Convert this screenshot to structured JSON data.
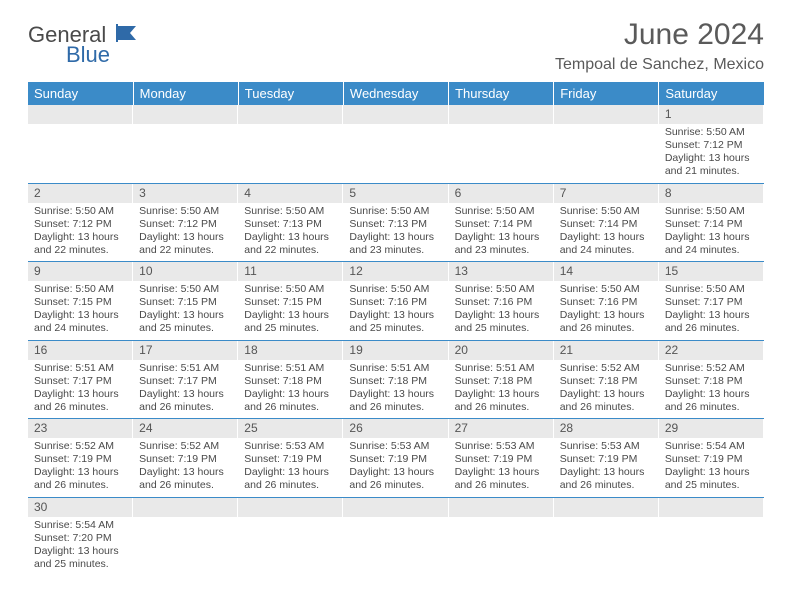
{
  "logo": {
    "general": "General",
    "blue": "Blue"
  },
  "title": "June 2024",
  "location": "Tempoal de Sanchez, Mexico",
  "weekdays": [
    "Sunday",
    "Monday",
    "Tuesday",
    "Wednesday",
    "Thursday",
    "Friday",
    "Saturday"
  ],
  "colors": {
    "header_bg": "#3b8bc8",
    "header_text": "#ffffff",
    "daynum_bg": "#e9e9e9",
    "rule": "#3b8bc8",
    "text": "#4a4a4a",
    "logo_blue": "#2f6aa8"
  },
  "weeks": [
    [
      null,
      null,
      null,
      null,
      null,
      null,
      {
        "n": "1",
        "sr": "Sunrise: 5:50 AM",
        "ss": "Sunset: 7:12 PM",
        "dl": "Daylight: 13 hours and 21 minutes."
      }
    ],
    [
      {
        "n": "2",
        "sr": "Sunrise: 5:50 AM",
        "ss": "Sunset: 7:12 PM",
        "dl": "Daylight: 13 hours and 22 minutes."
      },
      {
        "n": "3",
        "sr": "Sunrise: 5:50 AM",
        "ss": "Sunset: 7:12 PM",
        "dl": "Daylight: 13 hours and 22 minutes."
      },
      {
        "n": "4",
        "sr": "Sunrise: 5:50 AM",
        "ss": "Sunset: 7:13 PM",
        "dl": "Daylight: 13 hours and 22 minutes."
      },
      {
        "n": "5",
        "sr": "Sunrise: 5:50 AM",
        "ss": "Sunset: 7:13 PM",
        "dl": "Daylight: 13 hours and 23 minutes."
      },
      {
        "n": "6",
        "sr": "Sunrise: 5:50 AM",
        "ss": "Sunset: 7:14 PM",
        "dl": "Daylight: 13 hours and 23 minutes."
      },
      {
        "n": "7",
        "sr": "Sunrise: 5:50 AM",
        "ss": "Sunset: 7:14 PM",
        "dl": "Daylight: 13 hours and 24 minutes."
      },
      {
        "n": "8",
        "sr": "Sunrise: 5:50 AM",
        "ss": "Sunset: 7:14 PM",
        "dl": "Daylight: 13 hours and 24 minutes."
      }
    ],
    [
      {
        "n": "9",
        "sr": "Sunrise: 5:50 AM",
        "ss": "Sunset: 7:15 PM",
        "dl": "Daylight: 13 hours and 24 minutes."
      },
      {
        "n": "10",
        "sr": "Sunrise: 5:50 AM",
        "ss": "Sunset: 7:15 PM",
        "dl": "Daylight: 13 hours and 25 minutes."
      },
      {
        "n": "11",
        "sr": "Sunrise: 5:50 AM",
        "ss": "Sunset: 7:15 PM",
        "dl": "Daylight: 13 hours and 25 minutes."
      },
      {
        "n": "12",
        "sr": "Sunrise: 5:50 AM",
        "ss": "Sunset: 7:16 PM",
        "dl": "Daylight: 13 hours and 25 minutes."
      },
      {
        "n": "13",
        "sr": "Sunrise: 5:50 AM",
        "ss": "Sunset: 7:16 PM",
        "dl": "Daylight: 13 hours and 25 minutes."
      },
      {
        "n": "14",
        "sr": "Sunrise: 5:50 AM",
        "ss": "Sunset: 7:16 PM",
        "dl": "Daylight: 13 hours and 26 minutes."
      },
      {
        "n": "15",
        "sr": "Sunrise: 5:50 AM",
        "ss": "Sunset: 7:17 PM",
        "dl": "Daylight: 13 hours and 26 minutes."
      }
    ],
    [
      {
        "n": "16",
        "sr": "Sunrise: 5:51 AM",
        "ss": "Sunset: 7:17 PM",
        "dl": "Daylight: 13 hours and 26 minutes."
      },
      {
        "n": "17",
        "sr": "Sunrise: 5:51 AM",
        "ss": "Sunset: 7:17 PM",
        "dl": "Daylight: 13 hours and 26 minutes."
      },
      {
        "n": "18",
        "sr": "Sunrise: 5:51 AM",
        "ss": "Sunset: 7:18 PM",
        "dl": "Daylight: 13 hours and 26 minutes."
      },
      {
        "n": "19",
        "sr": "Sunrise: 5:51 AM",
        "ss": "Sunset: 7:18 PM",
        "dl": "Daylight: 13 hours and 26 minutes."
      },
      {
        "n": "20",
        "sr": "Sunrise: 5:51 AM",
        "ss": "Sunset: 7:18 PM",
        "dl": "Daylight: 13 hours and 26 minutes."
      },
      {
        "n": "21",
        "sr": "Sunrise: 5:52 AM",
        "ss": "Sunset: 7:18 PM",
        "dl": "Daylight: 13 hours and 26 minutes."
      },
      {
        "n": "22",
        "sr": "Sunrise: 5:52 AM",
        "ss": "Sunset: 7:18 PM",
        "dl": "Daylight: 13 hours and 26 minutes."
      }
    ],
    [
      {
        "n": "23",
        "sr": "Sunrise: 5:52 AM",
        "ss": "Sunset: 7:19 PM",
        "dl": "Daylight: 13 hours and 26 minutes."
      },
      {
        "n": "24",
        "sr": "Sunrise: 5:52 AM",
        "ss": "Sunset: 7:19 PM",
        "dl": "Daylight: 13 hours and 26 minutes."
      },
      {
        "n": "25",
        "sr": "Sunrise: 5:53 AM",
        "ss": "Sunset: 7:19 PM",
        "dl": "Daylight: 13 hours and 26 minutes."
      },
      {
        "n": "26",
        "sr": "Sunrise: 5:53 AM",
        "ss": "Sunset: 7:19 PM",
        "dl": "Daylight: 13 hours and 26 minutes."
      },
      {
        "n": "27",
        "sr": "Sunrise: 5:53 AM",
        "ss": "Sunset: 7:19 PM",
        "dl": "Daylight: 13 hours and 26 minutes."
      },
      {
        "n": "28",
        "sr": "Sunrise: 5:53 AM",
        "ss": "Sunset: 7:19 PM",
        "dl": "Daylight: 13 hours and 26 minutes."
      },
      {
        "n": "29",
        "sr": "Sunrise: 5:54 AM",
        "ss": "Sunset: 7:19 PM",
        "dl": "Daylight: 13 hours and 25 minutes."
      }
    ],
    [
      {
        "n": "30",
        "sr": "Sunrise: 5:54 AM",
        "ss": "Sunset: 7:20 PM",
        "dl": "Daylight: 13 hours and 25 minutes."
      },
      null,
      null,
      null,
      null,
      null,
      null
    ]
  ]
}
